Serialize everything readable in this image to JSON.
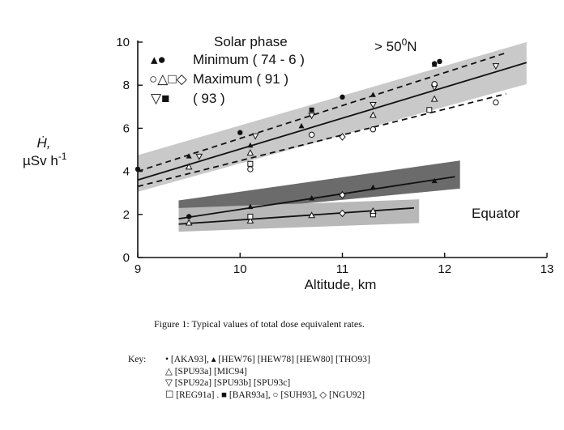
{
  "figure": {
    "caption": "Figure 1:   Typical values of total dose equivalent rates.",
    "key_title": "Key:",
    "key_lines": [
      "•  [AKA93], ▴ [HEW76] [HEW78] [HEW80] [THO93]",
      "△ [SPU93a] [MIC94]",
      "▽ [SPU92a] [SPU93b] [SPU93c]",
      "☐ [REG91a] . ■ [BAR93a], ○ [SUH93], ◇ [NGU92]"
    ]
  },
  "chart_data": {
    "type": "scatter",
    "xlabel": "Altitude, km",
    "ylabel_line1": "Ḣ,",
    "ylabel_line2": "µSv h",
    "ylabel_sup": "-1",
    "xlim": [
      9,
      13
    ],
    "ylim": [
      0,
      10
    ],
    "xticks": [
      9,
      10,
      11,
      12,
      13
    ],
    "yticks": [
      0,
      2,
      4,
      6,
      8,
      10
    ],
    "grid": false,
    "legend": {
      "title": "Solar phase",
      "entries": [
        {
          "symbols": "▴●",
          "label": "Minimum ( 74 - 6 )"
        },
        {
          "symbols": "○△□◇",
          "label": "Maximum ( 91 )"
        },
        {
          "symbols": "▽■",
          "label": "( 93 )"
        }
      ]
    },
    "annotations": {
      "high_lat": [
        "> 50",
        "0",
        "N"
      ],
      "equator": "Equator"
    },
    "bands": [
      {
        "region": "high_latitude",
        "color": "#c9c9c9",
        "x": [
          9,
          12.8
        ],
        "y_lower": [
          3.05,
          8.05
        ],
        "y_upper": [
          4.75,
          10.0
        ]
      },
      {
        "region": "equator_upper",
        "color": "#6b6b6b",
        "x": [
          9.4,
          12.15
        ],
        "y_lower": [
          1.95,
          3.2
        ],
        "y_upper": [
          2.65,
          4.5
        ]
      },
      {
        "region": "equator_lower",
        "color": "#b8b8b8",
        "x": [
          9.4,
          11.75
        ],
        "y_lower": [
          1.2,
          1.6
        ],
        "y_upper": [
          2.3,
          2.7
        ]
      }
    ],
    "lines": [
      {
        "style": "solid",
        "x": [
          9,
          12.8
        ],
        "y": [
          3.6,
          9.05
        ]
      },
      {
        "style": "dashed",
        "x": [
          9,
          12.6
        ],
        "y": [
          4.0,
          9.5
        ]
      },
      {
        "style": "dashed",
        "x": [
          9,
          12.6
        ],
        "y": [
          3.3,
          7.6
        ]
      },
      {
        "style": "solid",
        "x": [
          9.4,
          12.1
        ],
        "y": [
          1.8,
          3.75
        ]
      },
      {
        "style": "solid",
        "x": [
          9.4,
          11.7
        ],
        "y": [
          1.55,
          2.3
        ]
      }
    ],
    "points": [
      {
        "marker": "dot",
        "x": 9.0,
        "y": 4.1
      },
      {
        "marker": "dot",
        "x": 10.0,
        "y": 5.8
      },
      {
        "marker": "dot",
        "x": 11.0,
        "y": 7.45
      },
      {
        "marker": "dot",
        "x": 11.9,
        "y": 9.0
      },
      {
        "marker": "dot",
        "x": 11.95,
        "y": 9.1
      },
      {
        "marker": "tri_up_filled",
        "x": 9.5,
        "y": 4.7
      },
      {
        "marker": "tri_up_filled",
        "x": 10.1,
        "y": 5.2
      },
      {
        "marker": "tri_up_filled",
        "x": 10.6,
        "y": 6.1
      },
      {
        "marker": "tri_up_filled",
        "x": 11.3,
        "y": 7.55
      },
      {
        "marker": "tri_up_filled",
        "x": 11.9,
        "y": 8.95
      },
      {
        "marker": "tri_up_open",
        "x": 9.5,
        "y": 4.2
      },
      {
        "marker": "tri_up_open",
        "x": 10.1,
        "y": 4.85
      },
      {
        "marker": "tri_up_open",
        "x": 11.3,
        "y": 6.6
      },
      {
        "marker": "tri_up_open",
        "x": 11.9,
        "y": 7.35
      },
      {
        "marker": "tri_down_open",
        "x": 9.6,
        "y": 4.7
      },
      {
        "marker": "tri_down_open",
        "x": 10.15,
        "y": 5.65
      },
      {
        "marker": "tri_down_open",
        "x": 10.7,
        "y": 6.6
      },
      {
        "marker": "tri_down_open",
        "x": 11.3,
        "y": 7.1
      },
      {
        "marker": "tri_down_open",
        "x": 11.9,
        "y": 7.9
      },
      {
        "marker": "tri_down_open",
        "x": 12.5,
        "y": 8.9
      },
      {
        "marker": "circle_open",
        "x": 10.1,
        "y": 4.1
      },
      {
        "marker": "circle_open",
        "x": 10.7,
        "y": 5.7
      },
      {
        "marker": "circle_open",
        "x": 11.3,
        "y": 5.95
      },
      {
        "marker": "circle_open",
        "x": 11.9,
        "y": 8.05
      },
      {
        "marker": "circle_open",
        "x": 12.5,
        "y": 7.2
      },
      {
        "marker": "square_open",
        "x": 10.1,
        "y": 4.35
      },
      {
        "marker": "square_open",
        "x": 11.85,
        "y": 6.85
      },
      {
        "marker": "square_filled",
        "x": 10.7,
        "y": 6.85
      },
      {
        "marker": "diamond_open",
        "x": 11.0,
        "y": 5.6
      },
      {
        "marker": "dot",
        "x": 9.5,
        "y": 1.9
      },
      {
        "marker": "tri_up_filled",
        "x": 10.1,
        "y": 2.35
      },
      {
        "marker": "tri_up_filled",
        "x": 10.7,
        "y": 2.75
      },
      {
        "marker": "tri_up_filled",
        "x": 11.0,
        "y": 2.95
      },
      {
        "marker": "tri_up_filled",
        "x": 11.3,
        "y": 3.25
      },
      {
        "marker": "tri_up_filled",
        "x": 11.9,
        "y": 3.55
      },
      {
        "marker": "diamond_open",
        "x": 11.0,
        "y": 2.9
      },
      {
        "marker": "tri_up_open",
        "x": 9.5,
        "y": 1.6
      },
      {
        "marker": "tri_up_open",
        "x": 10.1,
        "y": 1.7
      },
      {
        "marker": "square_open",
        "x": 10.1,
        "y": 1.9
      },
      {
        "marker": "tri_up_open",
        "x": 10.7,
        "y": 1.95
      },
      {
        "marker": "diamond_open",
        "x": 11.0,
        "y": 2.05
      },
      {
        "marker": "square_open",
        "x": 11.3,
        "y": 2.0
      },
      {
        "marker": "tri_up_open",
        "x": 11.3,
        "y": 2.15
      }
    ]
  }
}
